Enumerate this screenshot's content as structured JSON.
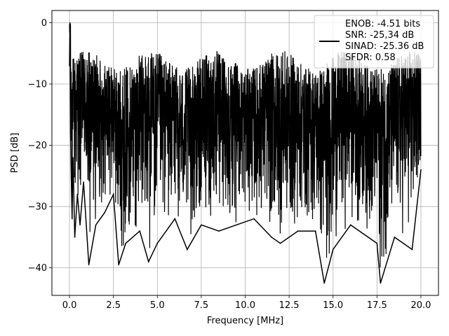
{
  "chart_data": {
    "type": "line",
    "title": "",
    "xlabel": "Frequency [MHz]",
    "ylabel": "PSD [dB]",
    "xlim": [
      -1.0,
      21.0
    ],
    "ylim": [
      -44.5,
      2.0
    ],
    "xticks": [
      0.0,
      2.5,
      5.0,
      7.5,
      10.0,
      12.5,
      15.0,
      17.5,
      20.0
    ],
    "xtick_labels": [
      "0.0",
      "2.5",
      "5.0",
      "7.5",
      "10.0",
      "12.5",
      "15.0",
      "17.5",
      "20.0"
    ],
    "yticks": [
      0,
      -10,
      -20,
      -30,
      -40
    ],
    "ytick_labels": [
      "0",
      "−10",
      "−20",
      "−30",
      "−40"
    ],
    "grid": true,
    "legend_position": "top-right",
    "legend_entries": [
      "ENOB: -4.51 bits",
      "SNR: -25,34 dB",
      "SINAD: -25.36 dB",
      "SFDR: 0.58"
    ],
    "series": [
      {
        "color": "#000000",
        "x": [
          0.0,
          0.03,
          0.06,
          0.1,
          0.15,
          0.2,
          0.3,
          0.45,
          0.6,
          0.8,
          1.1,
          1.5,
          2.0,
          2.5,
          2.8,
          3.2,
          4.0,
          4.5,
          5.0,
          6.0,
          6.7,
          7.5,
          8.5,
          9.5,
          10.5,
          11.5,
          12.0,
          13.0,
          14.0,
          14.5,
          15.0,
          16.0,
          17.0,
          17.5,
          17.7,
          18.5,
          19.0,
          19.5,
          20.0
        ],
        "values": [
          -7,
          0,
          -18,
          -25,
          -32,
          -22,
          -35,
          -28,
          -33,
          -26,
          -39.5,
          -33,
          -31,
          -28,
          -39.5,
          -36,
          -34,
          -39,
          -36,
          -32,
          -37,
          -33,
          -34,
          -33,
          -32,
          -35,
          -36,
          -34,
          -34,
          -42.5,
          -37,
          -33,
          -35,
          -36,
          -42.5,
          -35,
          -36,
          -37,
          -24
        ]
      }
    ]
  }
}
